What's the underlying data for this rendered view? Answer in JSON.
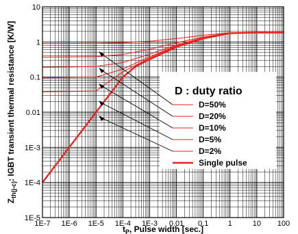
{
  "chart_data": {
    "type": "line",
    "xscale": "log",
    "yscale": "log",
    "xlim": [
      1e-07,
      100
    ],
    "ylim": [
      1e-05,
      10
    ],
    "grid": true,
    "legend_position": "right",
    "xlabel": {
      "main": "t",
      "sub": "P",
      "rest": ", Pulse width [sec.]"
    },
    "ylabel": {
      "main": "Z",
      "sub": "th(j-c)",
      "rest": ": IGBT transient thermal resistance [K/W]"
    },
    "x_tick_labels": [
      "1E-7",
      "1E-6",
      "1E-5",
      "1E-4",
      "1E-3",
      "0.01",
      "0.1",
      "1",
      "10",
      "100"
    ],
    "y_tick_labels": [
      "1E-5",
      "1E-4",
      "1E-3",
      "0.01",
      "0.1",
      "1",
      "10"
    ],
    "legend_title": "D : duty ratio",
    "line_color": "#e8231e",
    "series": [
      {
        "name": "D=50%",
        "x": [
          1e-07,
          1e-05,
          0.0001,
          0.001,
          0.01,
          0.1,
          1,
          10,
          100
        ],
        "y": [
          0.9,
          0.91,
          0.95,
          1.05,
          1.25,
          1.55,
          1.82,
          1.85,
          1.85
        ]
      },
      {
        "name": "D=20%",
        "x": [
          1e-07,
          1e-05,
          0.0001,
          0.001,
          0.01,
          0.1,
          1,
          10,
          100
        ],
        "y": [
          0.37,
          0.38,
          0.44,
          0.62,
          0.95,
          1.38,
          1.8,
          1.85,
          1.85
        ]
      },
      {
        "name": "D=10%",
        "x": [
          1e-07,
          1e-05,
          0.0001,
          0.001,
          0.01,
          0.1,
          1,
          10,
          100
        ],
        "y": [
          0.19,
          0.2,
          0.26,
          0.45,
          0.82,
          1.32,
          1.79,
          1.85,
          1.85
        ]
      },
      {
        "name": "D=5%",
        "x": [
          1e-07,
          1e-05,
          0.0001,
          0.001,
          0.01,
          0.1,
          1,
          10,
          100
        ],
        "y": [
          0.095,
          0.1,
          0.17,
          0.38,
          0.78,
          1.3,
          1.78,
          1.85,
          1.85
        ]
      },
      {
        "name": "D=2%",
        "x": [
          1e-07,
          1e-05,
          2e-05,
          0.0001,
          0.001,
          0.01,
          0.1,
          1,
          10,
          100
        ],
        "y": [
          0.038,
          0.04,
          0.06,
          0.14,
          0.35,
          0.76,
          1.28,
          1.78,
          1.85,
          1.85
        ]
      },
      {
        "name": "Single pulse",
        "x": [
          1e-07,
          1e-06,
          1e-05,
          3e-05,
          0.0001,
          0.0003,
          0.001,
          0.01,
          0.1,
          1,
          10,
          100
        ],
        "y": [
          0.0001,
          0.001,
          0.01,
          0.03,
          0.1,
          0.2,
          0.32,
          0.72,
          1.25,
          1.77,
          1.85,
          1.85
        ]
      }
    ]
  }
}
